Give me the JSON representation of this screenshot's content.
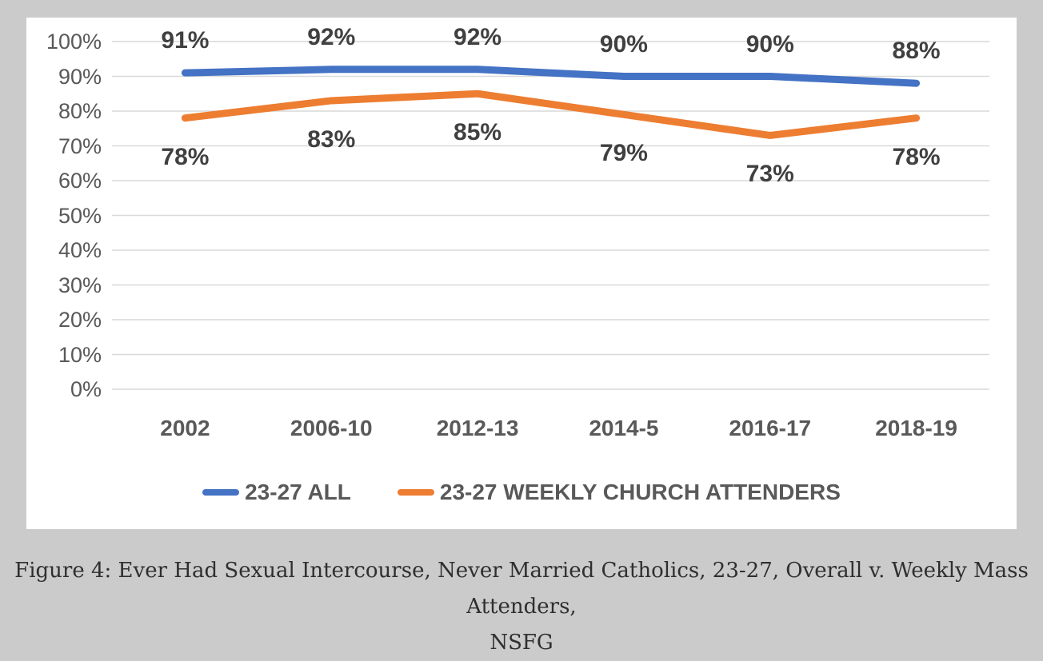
{
  "chart_data": {
    "type": "line",
    "categories": [
      "2002",
      "2006-10",
      "2012-13",
      "2014-5",
      "2016-17",
      "2018-19"
    ],
    "series": [
      {
        "name": "23-27 ALL",
        "color": "#4472C4",
        "values": [
          91,
          92,
          92,
          90,
          90,
          88
        ],
        "labels": [
          "91%",
          "92%",
          "92%",
          "90%",
          "90%",
          "88%"
        ],
        "label_position": "above"
      },
      {
        "name": "23-27 WEEKLY CHURCH ATTENDERS",
        "color": "#ED7D31",
        "values": [
          78,
          83,
          85,
          79,
          73,
          78
        ],
        "labels": [
          "78%",
          "83%",
          "85%",
          "79%",
          "73%",
          "78%"
        ],
        "label_position": "below"
      }
    ],
    "title": "",
    "xlabel": "",
    "ylabel": "",
    "ylim": [
      0,
      100
    ],
    "y_tick_step": 10,
    "y_ticks": [
      "0%",
      "10%",
      "20%",
      "30%",
      "40%",
      "50%",
      "60%",
      "70%",
      "80%",
      "90%",
      "100%"
    ],
    "grid": true,
    "legend_position": "bottom"
  },
  "theme": {
    "page_background": "#cbcbcb",
    "panel_background": "#ffffff",
    "gridline_color": "#d9d9d9",
    "axis_text_color": "#595959",
    "data_label_color": "#404040"
  },
  "figure": {
    "caption_line1": "Figure 4: Ever Had Sexual Intercourse, Never Married Catholics, 23-27, Overall v. Weekly Mass Attenders,",
    "caption_line2": "NSFG"
  }
}
